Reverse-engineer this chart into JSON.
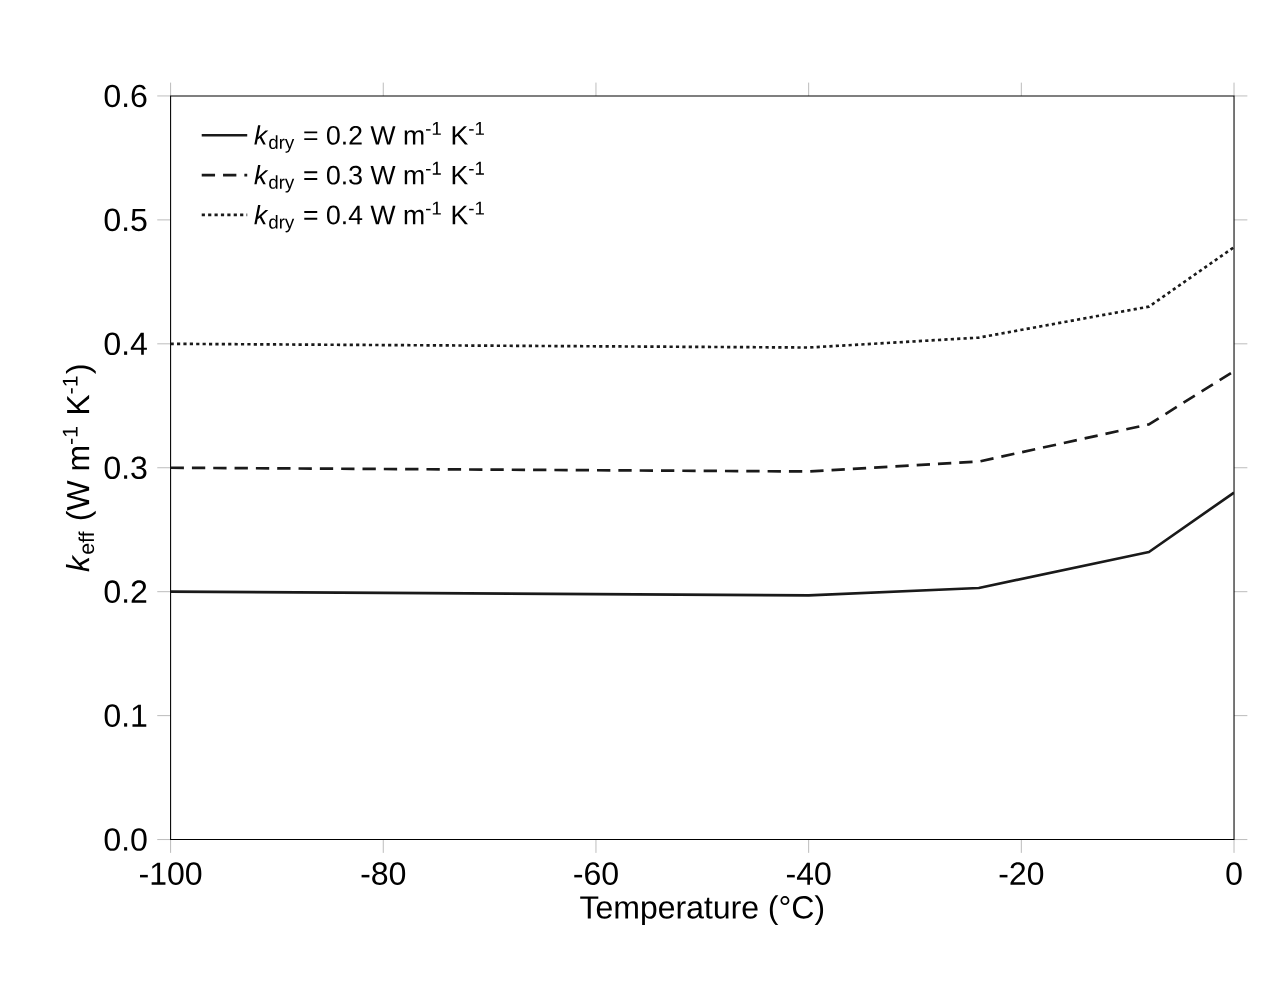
{
  "chart_data": {
    "type": "line",
    "xlabel": "Temperature (°C)",
    "ylabel": "*k*$_{eff}$  (W m$^{-1}$ K$^{-1}$)",
    "xlim": [
      -100,
      0
    ],
    "ylim": [
      0,
      0.6
    ],
    "xticks": [
      -100,
      -80,
      -60,
      -40,
      -20,
      0
    ],
    "yticks": [
      {
        "value": 0,
        "label": "0.0"
      },
      {
        "value": 0.1,
        "label": "0.1"
      },
      {
        "value": 0.2,
        "label": "0.2"
      },
      {
        "value": 0.3,
        "label": "0.3"
      },
      {
        "value": 0.4,
        "label": "0.4"
      },
      {
        "value": 0.5,
        "label": "0.5"
      },
      {
        "value": 0.6,
        "label": "0.6"
      }
    ],
    "grid": false,
    "legend": "top left",
    "marker": "none",
    "x": [
      -100,
      -80,
      -60,
      -40,
      -24,
      -8,
      0
    ],
    "series": [
      {
        "name": "*k*$_{dry}$ = 0.2 W m$^{-1}$ K$^{-1}$",
        "color": "#1a1a1a",
        "line_style": "solid",
        "values": [
          0.2,
          0.199,
          0.198,
          0.197,
          0.203,
          0.232,
          0.28
        ]
      },
      {
        "name": "*k*$_{dry}$ = 0.3 W m$^{-1}$ K$^{-1}$",
        "color": "#1a1a1a",
        "line_style": "dashed",
        "values": [
          0.3,
          0.299,
          0.298,
          0.297,
          0.305,
          0.335,
          0.378
        ]
      },
      {
        "name": "*k*$_{dry}$ = 0.4 W m$^{-1}$ K$^{-1}$",
        "color": "#1a1a1a",
        "line_style": "dotted",
        "values": [
          0.4,
          0.399,
          0.398,
          0.397,
          0.405,
          0.43,
          0.478
        ]
      }
    ]
  }
}
